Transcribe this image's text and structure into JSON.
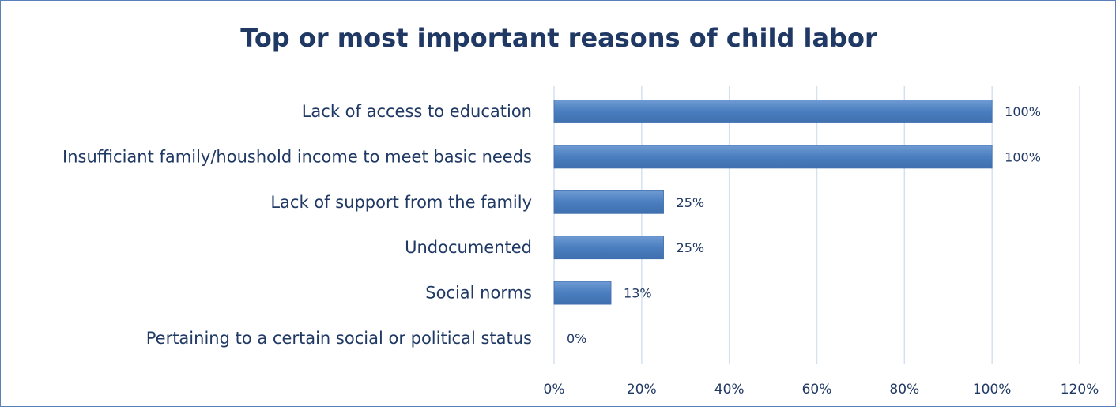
{
  "chart_data": {
    "type": "bar",
    "orientation": "horizontal",
    "title": "Top or most important reasons of child labor",
    "categories": [
      "Lack of access to education",
      "Insufficiant family/houshold income to meet basic needs",
      "Lack of support from the family",
      "Undocumented",
      "Social norms",
      "Pertaining to a certain social or political status"
    ],
    "values": [
      100,
      100,
      25,
      25,
      13,
      0
    ],
    "data_labels": [
      "100%",
      "100%",
      "25%",
      "25%",
      "13%",
      "0%"
    ],
    "xlim": [
      0,
      120
    ],
    "x_ticks": [
      0,
      20,
      40,
      60,
      80,
      100,
      120
    ],
    "x_tick_labels": [
      "0%",
      "20%",
      "40%",
      "60%",
      "80%",
      "100%",
      "120%"
    ],
    "grid": true,
    "legend": "none",
    "bar_color": "#4a7ebf",
    "bar_color_light": "#6f9bd3",
    "text_color": "#1f3864",
    "grid_color": "#d6e1f0",
    "border_color": "#5b7fb8"
  }
}
